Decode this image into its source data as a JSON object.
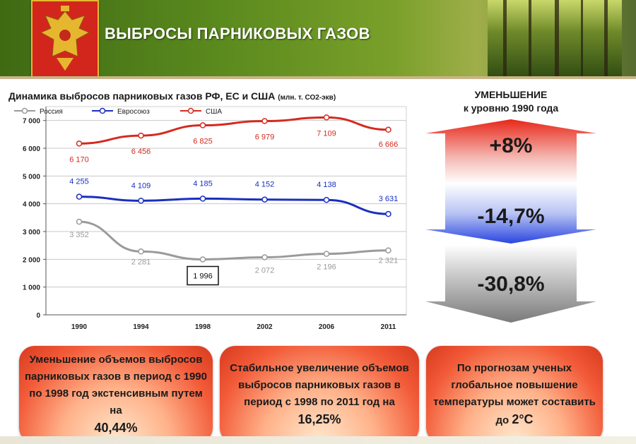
{
  "header": {
    "title": "ВЫБРОСЫ ПАРНИКОВЫХ ГАЗОВ"
  },
  "chart_data": {
    "type": "line",
    "title": "Динамика выбросов парниковых газов РФ, ЕС и США",
    "unit_label": "(млн. т. СО2-экв)",
    "categories": [
      "1990",
      "1994",
      "1998",
      "2002",
      "2006",
      "2011"
    ],
    "ylim": [
      0,
      7500
    ],
    "yticks": [
      0,
      1000,
      2000,
      3000,
      4000,
      5000,
      6000,
      7000
    ],
    "ytick_labels": [
      "0",
      "1 000",
      "2 000",
      "3 000",
      "4 000",
      "5 000",
      "6 000",
      "7 000"
    ],
    "grid": true,
    "legend_position": "top",
    "series": [
      {
        "name": "Россия",
        "color": "#9a9a9a",
        "values": [
          3352,
          2281,
          1996,
          2072,
          2196,
          2321
        ],
        "labels": [
          "3 352",
          "2 281",
          "1 996",
          "2 072",
          "2 196",
          "2 321"
        ]
      },
      {
        "name": "Евросоюз",
        "color": "#1a2fbf",
        "values": [
          4255,
          4109,
          4185,
          4152,
          4138,
          3631
        ],
        "labels": [
          "4 255",
          "4 109",
          "4 185",
          "4 152",
          "4 138",
          "3 631"
        ]
      },
      {
        "name": "США",
        "color": "#d42a1e",
        "values": [
          6170,
          6456,
          6825,
          6979,
          7109,
          6666
        ],
        "labels": [
          "6 170",
          "6 456",
          "6 825",
          "6 979",
          "7 109",
          "6 666"
        ]
      }
    ],
    "highlighted_label": {
      "series": 0,
      "index": 2
    }
  },
  "reduction": {
    "heading_line1": "УМЕНЬШЕНИЕ",
    "heading_line2": "к уровню 1990 года",
    "items": [
      {
        "value": "+8%",
        "color": "#e8281a"
      },
      {
        "value": "-14,7%",
        "color": "#2a45e0"
      },
      {
        "value": "-30,8%",
        "color": "#8c8c8c"
      }
    ]
  },
  "boxes": [
    {
      "text": "Уменьшение объемов выбросов парниковых газов в период с 1990 по 1998 год экстенсивным путем  на",
      "big": "40,44%"
    },
    {
      "text": "Стабильное увеличение объемов выбросов парниковых газов в период с 1998 по 2011 год на",
      "big": "16,25%"
    },
    {
      "text": "По прогнозам ученых глобальное повышение температуры может составить до",
      "big": "2°С"
    }
  ]
}
